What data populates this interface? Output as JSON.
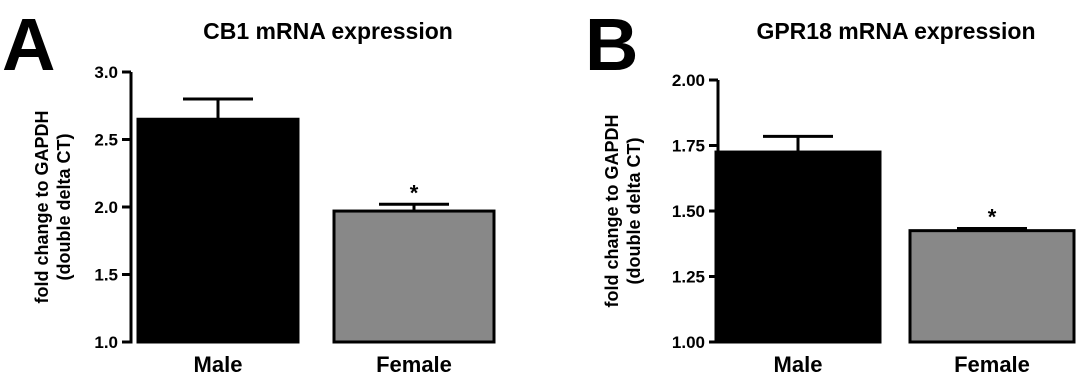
{
  "chart_data": [
    {
      "type": "bar",
      "panel": "A",
      "title": "CB1 mRNA expression",
      "ylabel_lines": [
        "fold change to GAPDH",
        "(double delta CT)"
      ],
      "categories": [
        "Male",
        "Female"
      ],
      "values": [
        2.65,
        1.97
      ],
      "errors": [
        0.15,
        0.05
      ],
      "significance": [
        "",
        "*"
      ],
      "bar_colors": [
        "#000000",
        "#888888"
      ],
      "ylim": [
        1.0,
        3.0
      ],
      "yticks": [
        1.0,
        1.5,
        2.0,
        2.5,
        3.0
      ],
      "ytick_labels": [
        "1.0",
        "1.5",
        "2.0",
        "2.5",
        "3.0"
      ]
    },
    {
      "type": "bar",
      "panel": "B",
      "title": "GPR18 mRNA expression",
      "ylabel_lines": [
        "fold change to GAPDH",
        "(double delta CT)"
      ],
      "categories": [
        "Male",
        "Female"
      ],
      "values": [
        1.725,
        1.425
      ],
      "errors": [
        0.06,
        0.008
      ],
      "significance": [
        "",
        "*"
      ],
      "bar_colors": [
        "#000000",
        "#888888"
      ],
      "ylim": [
        1.0,
        2.0
      ],
      "yticks": [
        1.0,
        1.25,
        1.5,
        1.75,
        2.0
      ],
      "ytick_labels": [
        "1.00",
        "1.25",
        "1.50",
        "1.75",
        "2.00"
      ]
    }
  ]
}
